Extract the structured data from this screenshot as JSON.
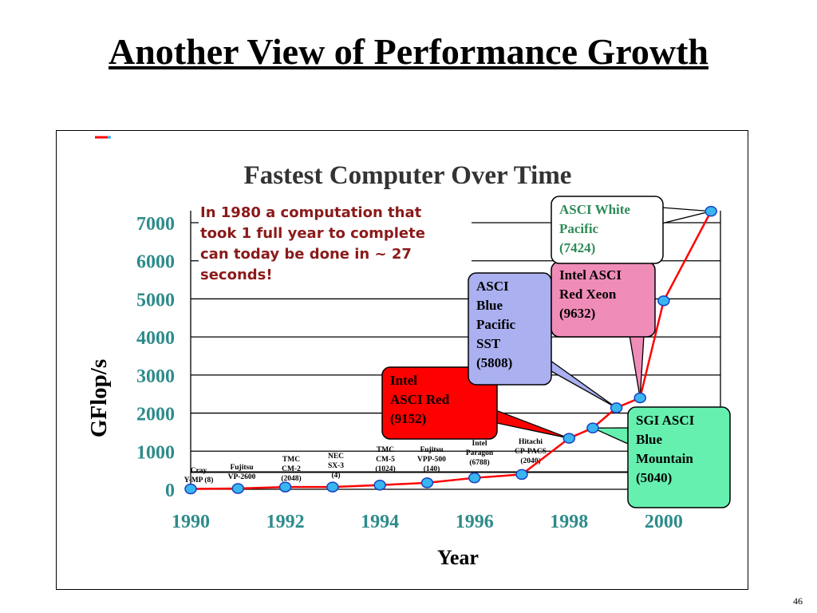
{
  "slide": {
    "title": "Another View of Performance Growth",
    "page_number": "46"
  },
  "colors": {
    "axis_text": "#2e8b8b",
    "line": "#ff0000",
    "marker": "#38b6f0",
    "marker_stroke": "#1a3fbf",
    "note_text": "#8b1a1a"
  },
  "chart_data": {
    "type": "line",
    "title": "Fastest Computer Over Time",
    "xlabel": "Year",
    "ylabel": "GFlop/s",
    "xlim": [
      1990,
      2001.2
    ],
    "ylim": [
      0,
      7000
    ],
    "x_ticks": [
      "1990",
      "1992",
      "1994",
      "1996",
      "1998",
      "2000"
    ],
    "y_ticks": [
      "0",
      "1000",
      "2000",
      "3000",
      "4000",
      "5000",
      "6000",
      "7000"
    ],
    "grid": true,
    "x": [
      1990,
      1991,
      1992,
      1993,
      1994,
      1995,
      1996,
      1997,
      1998,
      1998.5,
      1999,
      1999.5,
      2000,
      2001
    ],
    "values": [
      10,
      20,
      60,
      60,
      110,
      170,
      300,
      390,
      1340,
      1610,
      2140,
      2400,
      4950,
      7300
    ],
    "note": [
      "In 1980 a computation that",
      "took 1 full year to complete",
      "can today be done in ~ 27",
      "seconds!"
    ],
    "point_labels": [
      {
        "text": [
          "Cray",
          "Y-MP (8)"
        ]
      },
      {
        "text": [
          "Fujitsu",
          "VP-2600"
        ]
      },
      {
        "text": [
          "TMC",
          "CM-2",
          "(2048)"
        ]
      },
      {
        "text": [
          "NEC",
          "SX-3",
          "(4)"
        ]
      },
      {
        "text": [
          "TMC",
          "CM-5",
          "(1024)"
        ]
      },
      {
        "text": [
          "Fujitsu",
          "VPP-500",
          "(140)"
        ]
      },
      {
        "text": [
          "Intel",
          "Paragon",
          "(6788)"
        ]
      },
      {
        "text": [
          "Hitachi",
          "CP-PACS",
          "(2040)"
        ]
      }
    ],
    "callouts": [
      {
        "lines": [
          "Intel",
          "ASCI Red",
          "(9152)"
        ],
        "color": "#ff0000",
        "text_color": "#000000"
      },
      {
        "lines": [
          "ASCI",
          "Blue",
          "Pacific",
          "SST",
          "(5808)"
        ],
        "color": "#aab0f0",
        "text_color": "#000000"
      },
      {
        "lines": [
          "Intel ASCI",
          "Red Xeon",
          "(9632)"
        ],
        "color": "#f08cb8",
        "text_color": "#000000"
      },
      {
        "lines": [
          "ASCI White",
          "Pacific",
          "(7424)"
        ],
        "color": "#ffffff",
        "text_color": "#2e8b57"
      },
      {
        "lines": [
          "SGI ASCI",
          "Blue",
          "Mountain",
          "(5040)"
        ],
        "color": "#66f0b0",
        "text_color": "#000000"
      }
    ]
  }
}
